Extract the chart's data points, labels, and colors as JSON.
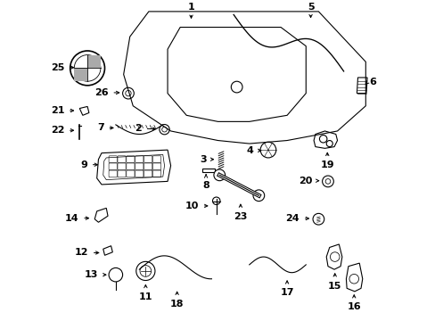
{
  "bg_color": "#ffffff",
  "line_color": "#000000",
  "font_size_bold": 8,
  "part_labels": {
    "1": [
      0.415,
      0.98,
      "center",
      "bottom"
    ],
    "2": [
      0.258,
      0.607,
      "right",
      "center"
    ],
    "3": [
      0.463,
      0.51,
      "right",
      "center"
    ],
    "4": [
      0.612,
      0.538,
      "right",
      "center"
    ],
    "5": [
      0.795,
      0.98,
      "center",
      "bottom"
    ],
    "6": [
      0.982,
      0.757,
      "left",
      "center"
    ],
    "7": [
      0.138,
      0.61,
      "right",
      "center"
    ],
    "8": [
      0.462,
      0.442,
      "center",
      "top"
    ],
    "9": [
      0.085,
      0.493,
      "right",
      "center"
    ],
    "10": [
      0.44,
      0.362,
      "right",
      "center"
    ],
    "11": [
      0.27,
      0.088,
      "center",
      "top"
    ],
    "12": [
      0.088,
      0.213,
      "right",
      "center"
    ],
    "13": [
      0.12,
      0.143,
      "right",
      "center"
    ],
    "14": [
      0.058,
      0.323,
      "right",
      "center"
    ],
    "15": [
      0.872,
      0.122,
      "center",
      "top"
    ],
    "16": [
      0.933,
      0.055,
      "center",
      "top"
    ],
    "17": [
      0.72,
      0.1,
      "center",
      "top"
    ],
    "18": [
      0.37,
      0.065,
      "center",
      "top"
    ],
    "19": [
      0.848,
      0.505,
      "center",
      "top"
    ],
    "20": [
      0.8,
      0.442,
      "right",
      "center"
    ],
    "21": [
      0.012,
      0.665,
      "right",
      "center"
    ],
    "22": [
      0.012,
      0.602,
      "right",
      "center"
    ],
    "23": [
      0.572,
      0.342,
      "center",
      "top"
    ],
    "24": [
      0.76,
      0.322,
      "right",
      "center"
    ],
    "25": [
      0.012,
      0.802,
      "right",
      "center"
    ],
    "26": [
      0.152,
      0.722,
      "right",
      "center"
    ]
  },
  "part_arrows": {
    "1": [
      0.415,
      0.975,
      0.415,
      0.948
    ],
    "2": [
      0.268,
      0.607,
      0.312,
      0.607
    ],
    "3": [
      0.473,
      0.51,
      0.497,
      0.51
    ],
    "4": [
      0.622,
      0.538,
      0.648,
      0.538
    ],
    "5": [
      0.795,
      0.975,
      0.795,
      0.95
    ],
    "6": [
      0.978,
      0.757,
      0.962,
      0.742
    ],
    "7": [
      0.148,
      0.61,
      0.178,
      0.61
    ],
    "8": [
      0.462,
      0.452,
      0.462,
      0.472
    ],
    "9": [
      0.095,
      0.493,
      0.128,
      0.493
    ],
    "10": [
      0.45,
      0.362,
      0.478,
      0.362
    ],
    "11": [
      0.27,
      0.098,
      0.27,
      0.122
    ],
    "12": [
      0.098,
      0.213,
      0.132,
      0.213
    ],
    "13": [
      0.13,
      0.143,
      0.155,
      0.143
    ],
    "14": [
      0.068,
      0.323,
      0.1,
      0.323
    ],
    "15": [
      0.872,
      0.132,
      0.872,
      0.158
    ],
    "16": [
      0.933,
      0.065,
      0.933,
      0.09
    ],
    "17": [
      0.72,
      0.11,
      0.72,
      0.135
    ],
    "18": [
      0.37,
      0.075,
      0.37,
      0.1
    ],
    "19": [
      0.848,
      0.515,
      0.848,
      0.542
    ],
    "20": [
      0.81,
      0.442,
      0.832,
      0.442
    ],
    "21": [
      0.022,
      0.665,
      0.052,
      0.665
    ],
    "22": [
      0.022,
      0.602,
      0.052,
      0.602
    ],
    "23": [
      0.572,
      0.352,
      0.572,
      0.378
    ],
    "24": [
      0.77,
      0.322,
      0.8,
      0.322
    ],
    "25": [
      0.022,
      0.802,
      0.052,
      0.802
    ],
    "26": [
      0.162,
      0.722,
      0.197,
      0.722
    ]
  }
}
